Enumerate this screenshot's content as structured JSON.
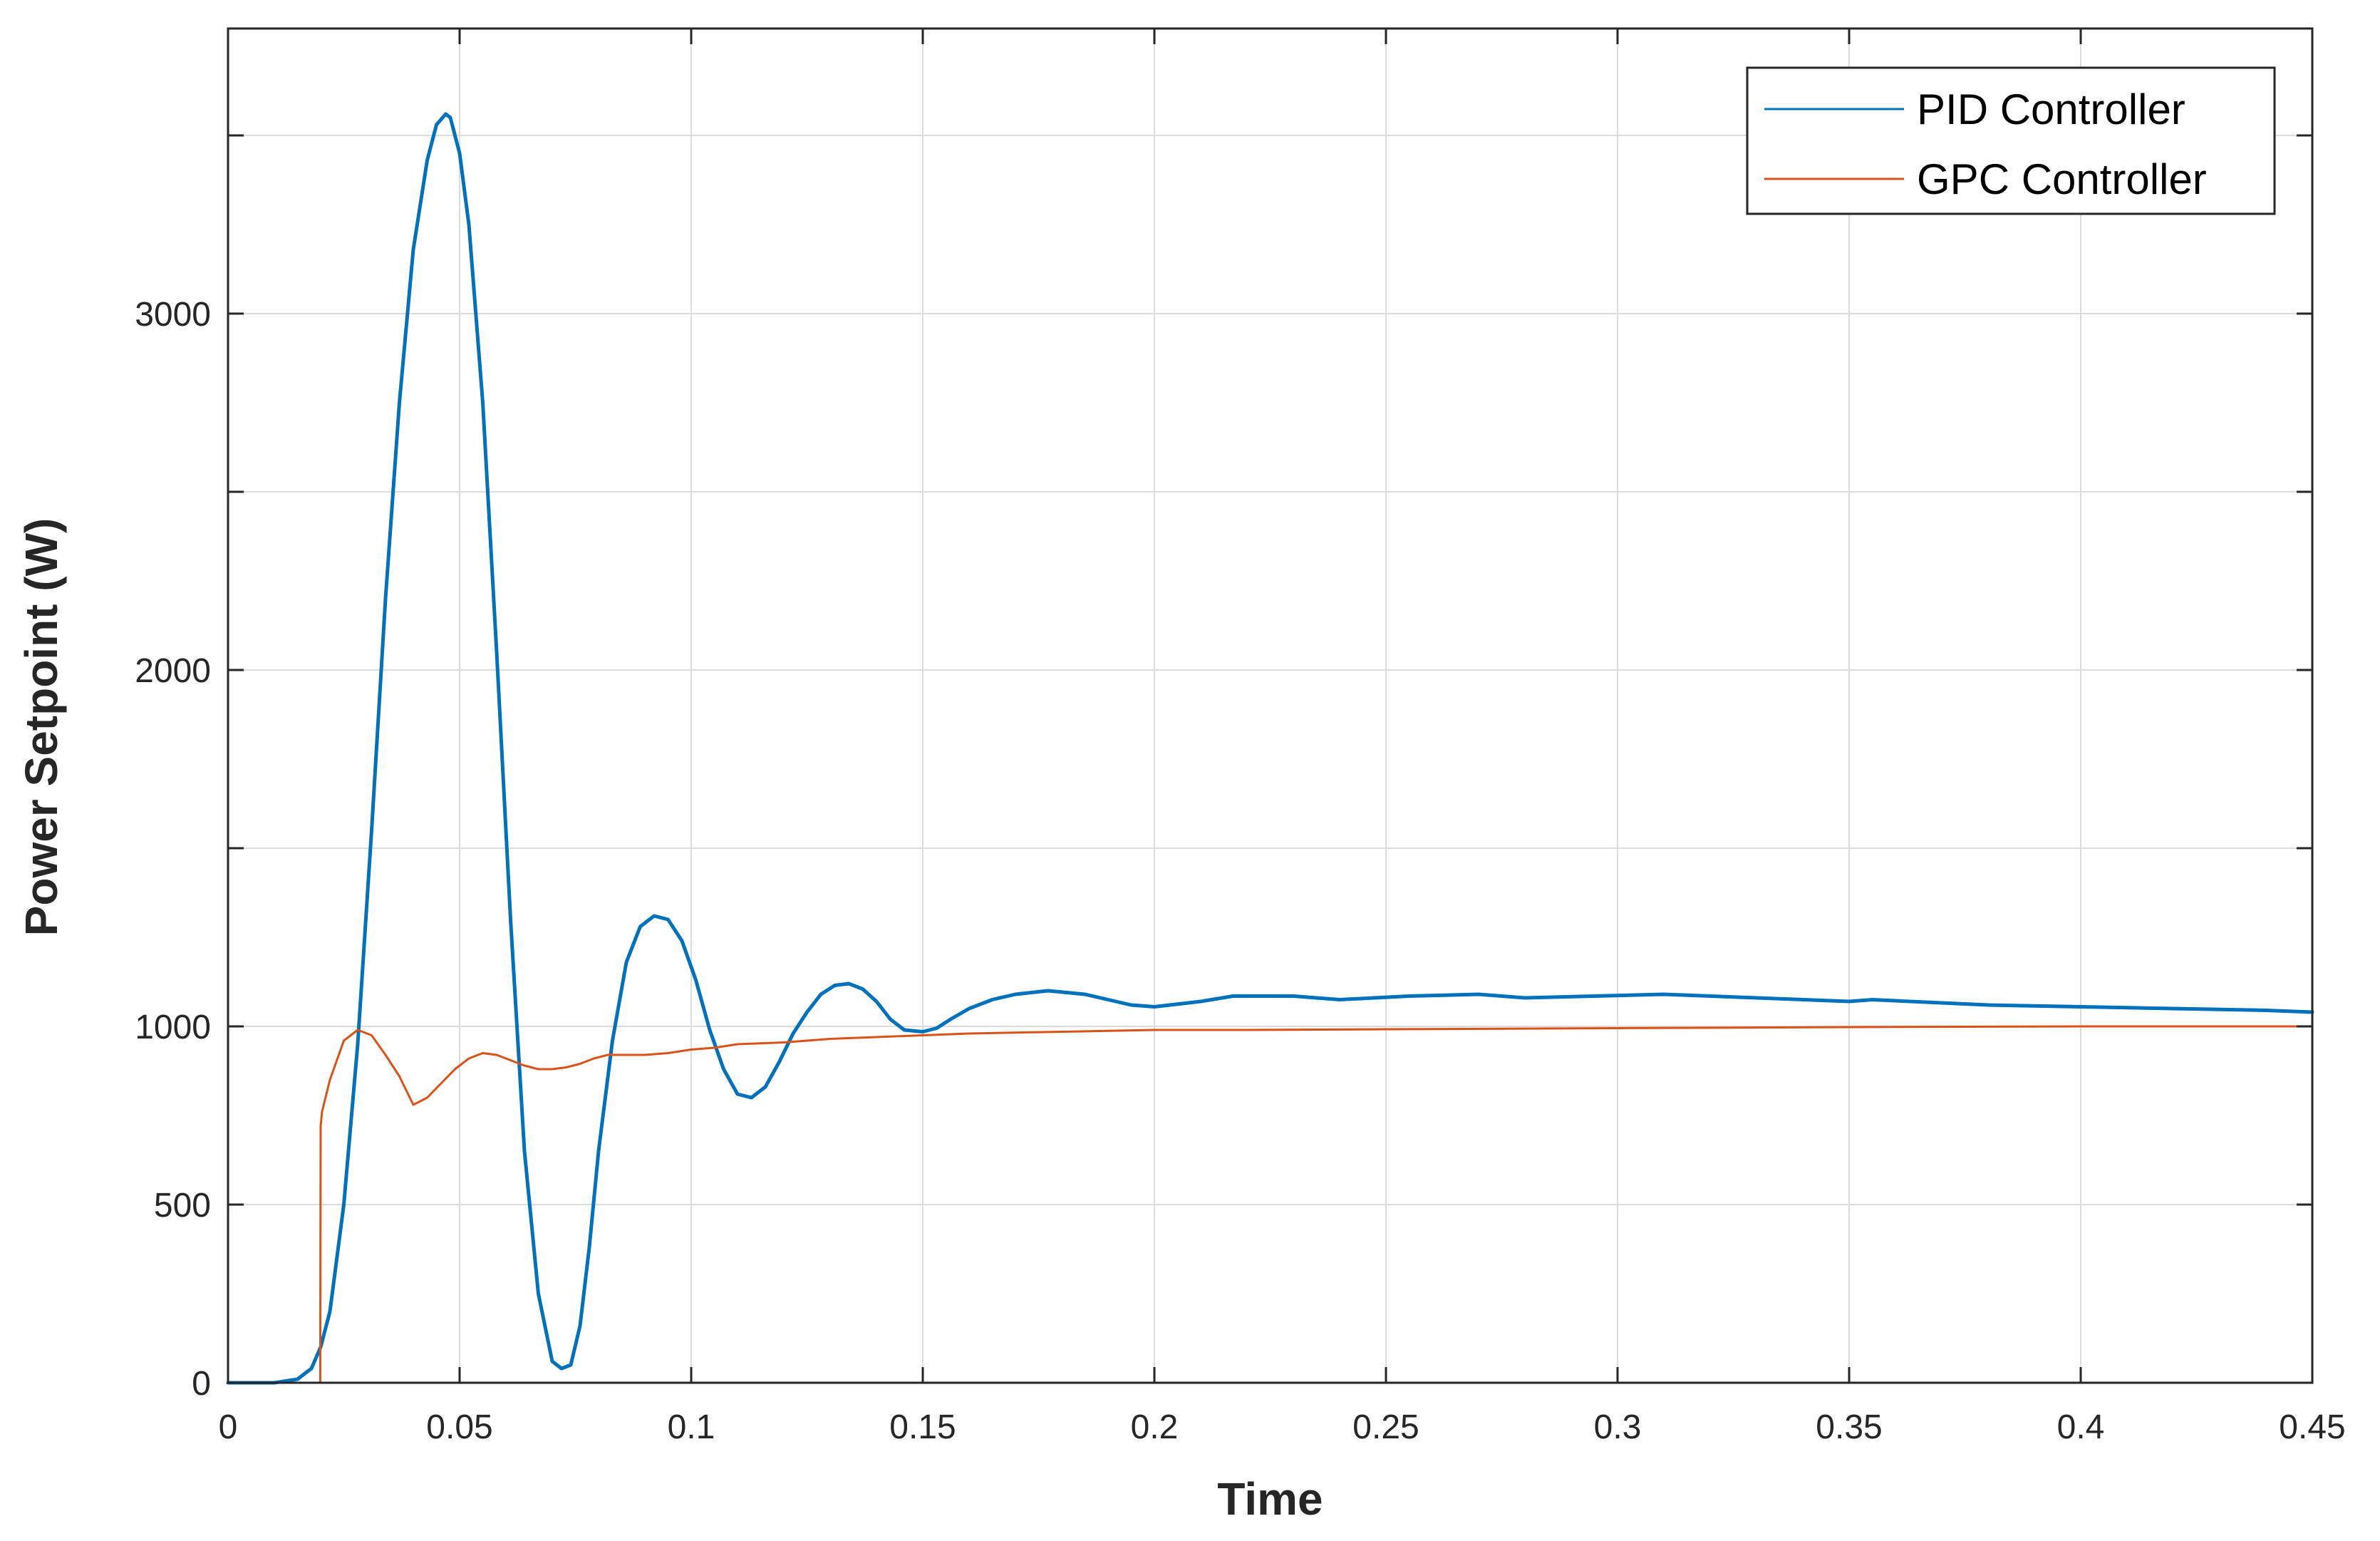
{
  "chart_data": {
    "type": "line",
    "title": "",
    "xlabel": "Time",
    "ylabel": "Power Setpoint (W)",
    "xlim": [
      0,
      0.45
    ],
    "ylim": [
      0,
      3800
    ],
    "x_ticks": [
      0,
      0.05,
      0.1,
      0.15,
      0.2,
      0.25,
      0.3,
      0.35,
      0.4,
      0.45
    ],
    "x_tick_labels": [
      "0",
      "0.05",
      "0.1",
      "0.15",
      "0.2",
      "0.25",
      "0.3",
      "0.35",
      "0.4",
      "0.45"
    ],
    "y_ticks": [
      0,
      500,
      1000,
      1500,
      2000,
      2500,
      3000,
      3500
    ],
    "y_tick_labels": [
      "0",
      "500",
      "1000",
      "",
      "2000",
      "",
      "3000",
      ""
    ],
    "grid": true,
    "legend_position": "top-right",
    "series": [
      {
        "name": "PID Controller",
        "color": "#0072BD",
        "x": [
          0,
          0.01,
          0.015,
          0.018,
          0.02,
          0.022,
          0.025,
          0.028,
          0.031,
          0.034,
          0.037,
          0.04,
          0.043,
          0.045,
          0.047,
          0.048,
          0.05,
          0.052,
          0.055,
          0.058,
          0.061,
          0.064,
          0.067,
          0.07,
          0.072,
          0.074,
          0.076,
          0.078,
          0.08,
          0.083,
          0.086,
          0.089,
          0.092,
          0.095,
          0.098,
          0.101,
          0.104,
          0.107,
          0.11,
          0.113,
          0.116,
          0.119,
          0.122,
          0.125,
          0.128,
          0.131,
          0.134,
          0.137,
          0.14,
          0.143,
          0.146,
          0.15,
          0.153,
          0.156,
          0.16,
          0.165,
          0.17,
          0.177,
          0.185,
          0.195,
          0.2,
          0.21,
          0.217,
          0.23,
          0.24,
          0.255,
          0.27,
          0.28,
          0.295,
          0.31,
          0.33,
          0.35,
          0.355,
          0.38,
          0.4,
          0.42,
          0.44,
          0.45
        ],
        "y": [
          0,
          0,
          10,
          40,
          100,
          200,
          500,
          950,
          1550,
          2200,
          2750,
          3180,
          3430,
          3530,
          3560,
          3550,
          3450,
          3250,
          2750,
          2050,
          1300,
          650,
          250,
          60,
          40,
          50,
          160,
          380,
          650,
          960,
          1180,
          1280,
          1310,
          1300,
          1240,
          1130,
          990,
          880,
          810,
          800,
          830,
          900,
          980,
          1040,
          1090,
          1115,
          1120,
          1105,
          1070,
          1020,
          990,
          985,
          995,
          1020,
          1050,
          1075,
          1090,
          1100,
          1090,
          1060,
          1055,
          1070,
          1085,
          1085,
          1075,
          1085,
          1090,
          1080,
          1085,
          1090,
          1080,
          1070,
          1075,
          1060,
          1055,
          1050,
          1045,
          1040
        ]
      },
      {
        "name": "GPC Controller",
        "color": "#D95319",
        "x": [
          0,
          0.0199,
          0.02,
          0.0203,
          0.022,
          0.025,
          0.028,
          0.031,
          0.034,
          0.037,
          0.04,
          0.043,
          0.046,
          0.049,
          0.052,
          0.055,
          0.058,
          0.061,
          0.064,
          0.067,
          0.07,
          0.073,
          0.076,
          0.079,
          0.082,
          0.085,
          0.09,
          0.095,
          0.1,
          0.105,
          0.11,
          0.12,
          0.13,
          0.14,
          0.15,
          0.16,
          0.18,
          0.2,
          0.22,
          0.25,
          0.3,
          0.35,
          0.4,
          0.45
        ],
        "y": [
          0,
          0,
          720,
          760,
          850,
          960,
          990,
          975,
          920,
          860,
          780,
          800,
          840,
          880,
          910,
          925,
          920,
          905,
          890,
          880,
          880,
          885,
          895,
          910,
          920,
          920,
          920,
          925,
          935,
          940,
          950,
          955,
          965,
          970,
          975,
          980,
          985,
          990,
          990,
          992,
          995,
          998,
          1000,
          1000
        ]
      }
    ]
  }
}
